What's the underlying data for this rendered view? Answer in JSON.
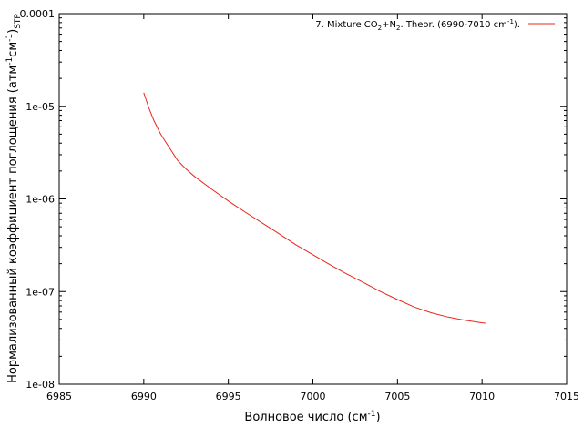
{
  "chart_data": {
    "type": "line",
    "title": "",
    "xlabel": "Волновое число (см",
    "xlabel_sup": "-1",
    "xlabel_end": ")",
    "ylabel": "Нормализованный коэффициент поглощения (атм",
    "ylabel_sup1": "-1",
    "ylabel_mid": "см",
    "ylabel_sup2": "-1",
    "ylabel_end": ")",
    "ylabel_sub": "STP",
    "xlim": [
      6985,
      7015
    ],
    "ylim": [
      1e-08,
      0.0001
    ],
    "yscale": "log",
    "x_ticks": [
      6985,
      6990,
      6995,
      7000,
      7005,
      7010,
      7015
    ],
    "x_tick_labels": [
      "6985",
      "6990",
      "6995",
      "7000",
      "7005",
      "7010",
      "7015"
    ],
    "y_ticks": [
      1e-08,
      1e-07,
      1e-06,
      1e-05,
      0.0001
    ],
    "y_tick_labels": [
      "1e-08",
      "1e-07",
      "1e-06",
      "1e-05",
      "0.0001"
    ],
    "grid": false,
    "legend_position": "top-right",
    "series": [
      {
        "name": "7. Mixture CO2+N2. Theor. (6990-7010 cm-1).",
        "legend_parts": {
          "a": "7. Mixture CO",
          "a_sub": "2",
          "b": "+N",
          "b_sub": "2",
          "c": ". Theor. (6990-7010 cm",
          "c_sup": "-1",
          "d": ")."
        },
        "color": "#e8251c",
        "x": [
          6990.0,
          6990.3,
          6990.6,
          6991.0,
          6991.5,
          6992.0,
          6992.5,
          6993.0,
          6994.0,
          6995.0,
          6996.0,
          6997.0,
          6998.0,
          6999.0,
          7000.0,
          7001.0,
          7002.0,
          7003.0,
          7004.0,
          7005.0,
          7006.0,
          7007.0,
          7008.0,
          7009.0,
          7010.0,
          7010.2
        ],
        "y": [
          1.4e-05,
          9.6e-06,
          7e-06,
          5e-06,
          3.6e-06,
          2.6e-06,
          2.1e-06,
          1.75e-06,
          1.28e-06,
          9.5e-07,
          7.2e-07,
          5.5e-07,
          4.2e-07,
          3.2e-07,
          2.5e-07,
          1.95e-07,
          1.55e-07,
          1.25e-07,
          1e-07,
          8.2e-08,
          6.8e-08,
          5.9e-08,
          5.3e-08,
          4.9e-08,
          4.6e-08,
          4.55e-08
        ]
      }
    ]
  }
}
